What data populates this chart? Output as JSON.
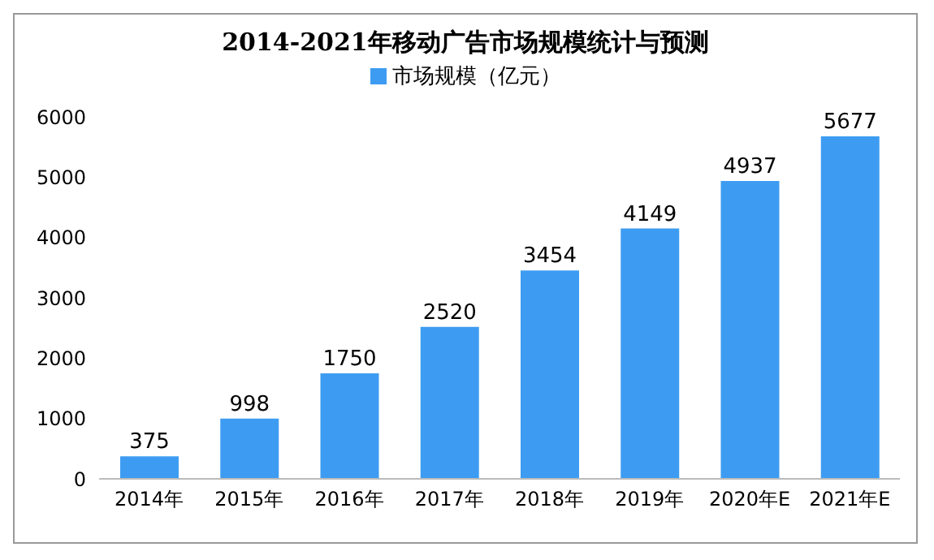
{
  "chart_data": {
    "type": "bar",
    "title": "2014-2021年移动广告市场规模统计与预测",
    "categories": [
      "2014年",
      "2015年",
      "2016年",
      "2017年",
      "2018年",
      "2019年",
      "2020年E",
      "2021年E"
    ],
    "series": [
      {
        "name": "市场规模（亿元）",
        "color": "#3d9cf2",
        "values": [
          375,
          998,
          1750,
          2520,
          3454,
          4149,
          4937,
          5677
        ]
      }
    ],
    "ylim": [
      0,
      6000
    ],
    "yticks": [
      0,
      1000,
      2000,
      3000,
      4000,
      5000,
      6000
    ],
    "grid": false,
    "legend": "top",
    "data_labels": true
  }
}
